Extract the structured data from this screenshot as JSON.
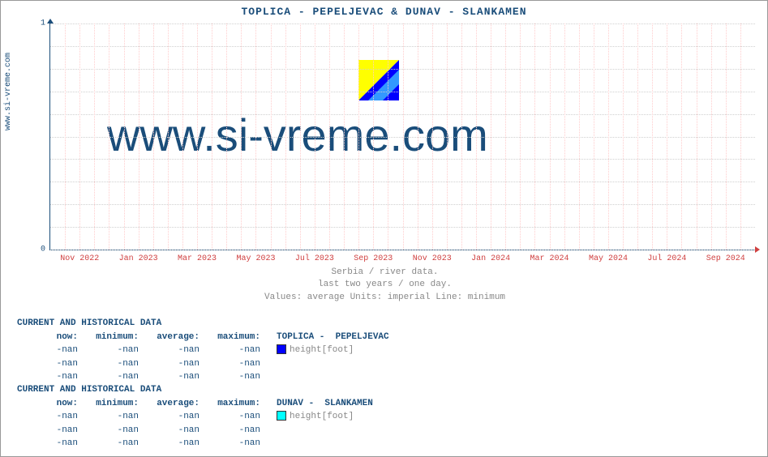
{
  "title": "TOPLICA -  PEPELJEVAC &  DUNAV -  SLANKAMEN",
  "side_label": "www.si-vreme.com",
  "watermark_text": "www.si-vreme.com",
  "chart": {
    "type": "line",
    "ylim": [
      0,
      1
    ],
    "yticks": [
      0,
      1
    ],
    "y_grid_steps": 10,
    "xticks": [
      "Nov 2022",
      "Jan 2023",
      "Mar 2023",
      "May 2023",
      "Jul 2023",
      "Sep 2023",
      "Nov 2023",
      "Jan 2024",
      "Mar 2024",
      "May 2024",
      "Jul 2024",
      "Sep 2024"
    ],
    "x_minor_count": 48,
    "axis_color": "#1a4d7a",
    "xaxis_tick_color": "#d04040",
    "grid_h_color": "#d0d0d0",
    "grid_v_color": "#ffcccc",
    "background_color": "#ffffff",
    "title_fontsize": 13,
    "tick_fontsize": 10
  },
  "logo_colors": {
    "tl": "#ffff00",
    "br": "#0000ff",
    "diag": "#3399ff"
  },
  "subtitle": {
    "line1": "Serbia / river data.",
    "line2": "last two years / one day.",
    "line3": "Values: average  Units: imperial  Line: minimum"
  },
  "tables": [
    {
      "header": "CURRENT AND HISTORICAL DATA",
      "cols": [
        "now:",
        "minimum:",
        "average:",
        "maximum:"
      ],
      "series_name": "TOPLICA -  PEPELJEVAC",
      "series_color": "#0000ff",
      "series_metric": "height[foot]",
      "rows": [
        [
          "-nan",
          "-nan",
          "-nan",
          "-nan"
        ],
        [
          "-nan",
          "-nan",
          "-nan",
          "-nan"
        ],
        [
          "-nan",
          "-nan",
          "-nan",
          "-nan"
        ]
      ]
    },
    {
      "header": "CURRENT AND HISTORICAL DATA",
      "cols": [
        "now:",
        "minimum:",
        "average:",
        "maximum:"
      ],
      "series_name": "DUNAV -  SLANKAMEN",
      "series_color": "#00ffff",
      "series_metric": "height[foot]",
      "rows": [
        [
          "-nan",
          "-nan",
          "-nan",
          "-nan"
        ],
        [
          "-nan",
          "-nan",
          "-nan",
          "-nan"
        ],
        [
          "-nan",
          "-nan",
          "-nan",
          "-nan"
        ]
      ]
    }
  ]
}
